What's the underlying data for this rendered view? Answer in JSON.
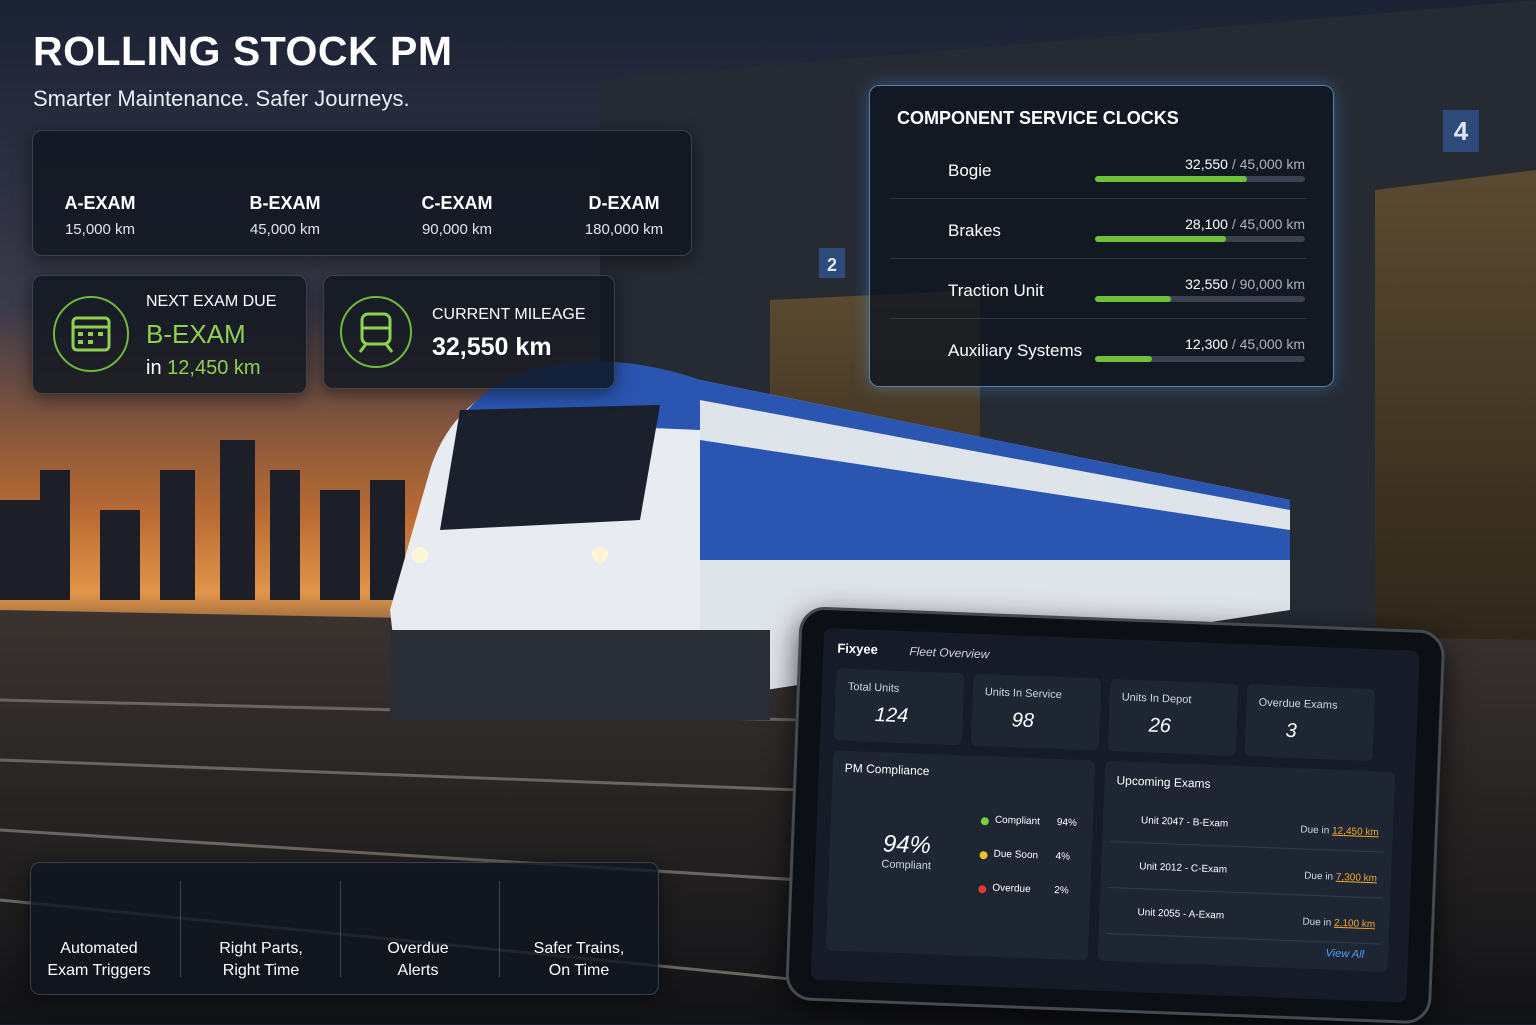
{
  "header": {
    "title": "ROLLING STOCK PM",
    "subtitle": "Smarter Maintenance. Safer Journeys."
  },
  "exam_timeline": [
    {
      "name": "A-EXAM",
      "interval": "15,000 km"
    },
    {
      "name": "B-EXAM",
      "interval": "45,000 km"
    },
    {
      "name": "C-EXAM",
      "interval": "90,000 km"
    },
    {
      "name": "D-EXAM",
      "interval": "180,000 km"
    }
  ],
  "next_exam": {
    "label": "NEXT EXAM DUE",
    "exam": "B-EXAM",
    "prefix": "in",
    "distance": "12,450 km"
  },
  "current_mileage": {
    "label": "CURRENT MILEAGE",
    "value": "32,550 km"
  },
  "depot_signs": [
    "4",
    "2"
  ],
  "service_clocks": {
    "title": "COMPONENT SERVICE CLOCKS",
    "items": [
      {
        "name": "Bogie",
        "value": 32550,
        "value_label": "32,550",
        "limit": 45000,
        "limit_label": "/ 45,000 km"
      },
      {
        "name": "Brakes",
        "value": 28100,
        "value_label": "28,100",
        "limit": 45000,
        "limit_label": "/ 45,000 km"
      },
      {
        "name": "Traction Unit",
        "value": 32550,
        "value_label": "32,550",
        "limit": 90000,
        "limit_label": "/ 90,000 km"
      },
      {
        "name": "Auxiliary Systems",
        "value": 12300,
        "value_label": "12,300",
        "limit": 45000,
        "limit_label": "/ 45,000 km"
      }
    ]
  },
  "features": [
    {
      "lines": [
        "Automated",
        "Exam Triggers"
      ]
    },
    {
      "lines": [
        "Right Parts,",
        "Right Time"
      ]
    },
    {
      "lines": [
        "Overdue",
        "Alerts"
      ]
    },
    {
      "lines": [
        "Safer Trains,",
        "On Time"
      ]
    }
  ],
  "tablet": {
    "brand": "Fixyee",
    "page": "Fleet Overview",
    "stats": [
      {
        "label": "Total Units",
        "value": "124"
      },
      {
        "label": "Units In Service",
        "value": "98"
      },
      {
        "label": "Units In Depot",
        "value": "26"
      },
      {
        "label": "Overdue Exams",
        "value": "3"
      }
    ],
    "compliance": {
      "title": "PM Compliance",
      "segments": [
        {
          "name": "Compliant",
          "value": 94,
          "label": "94%",
          "color": "#7ccf3a"
        },
        {
          "name": "Due Soon",
          "value": 4,
          "label": "4%",
          "color": "#f2c12e"
        },
        {
          "name": "Overdue",
          "value": 2,
          "label": "2%",
          "color": "#e53935"
        }
      ]
    },
    "upcoming": {
      "title": "Upcoming Exams",
      "items": [
        {
          "unit": "Unit 2047 - B-Exam",
          "due": "Due in",
          "distance": "12,450 km"
        },
        {
          "unit": "Unit 2012 - C-Exam",
          "due": "Due in",
          "distance": "7,300 km"
        },
        {
          "unit": "Unit 2055 - A-Exam",
          "due": "Due in",
          "distance": "2,100 km"
        }
      ],
      "link": "View All"
    }
  }
}
